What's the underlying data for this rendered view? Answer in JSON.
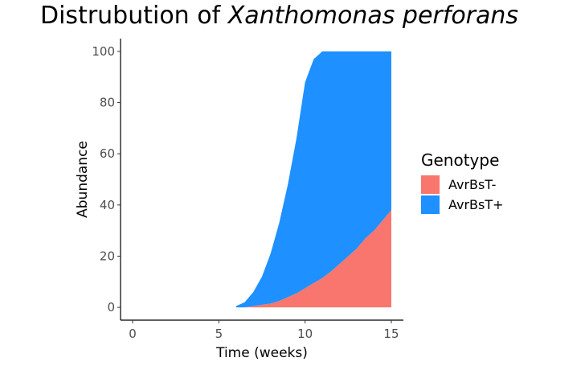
{
  "chart_data": {
    "type": "area",
    "stacked": true,
    "title": "Distrubution of",
    "title_italic": "Xanthomonas perforans",
    "xlabel": "Time (weeks)",
    "ylabel": "Abundance",
    "xlim": [
      -0.7,
      15.7
    ],
    "ylim": [
      -5,
      105
    ],
    "xticks": [
      0,
      5,
      10,
      15
    ],
    "yticks": [
      0,
      20,
      40,
      60,
      80,
      100
    ],
    "grid": false,
    "legend_title": "Genotype",
    "legend_position": "right",
    "x": [
      6,
      6.5,
      7,
      7.5,
      8,
      8.5,
      9,
      9.5,
      10,
      10.5,
      11,
      11.5,
      12,
      12.5,
      13,
      13.5,
      14,
      14.5,
      15
    ],
    "series": [
      {
        "name": "AvrBsT-",
        "color": "#F8766D",
        "values": [
          0,
          0,
          0.5,
          1,
          1.5,
          2.5,
          4,
          5.5,
          7.5,
          9.5,
          11.5,
          14,
          17,
          20,
          23,
          27,
          30,
          34,
          38
        ]
      },
      {
        "name": "AvrBsT+",
        "color": "#1E90FF",
        "values": [
          0.5,
          2,
          5.5,
          11,
          19.5,
          30.5,
          44,
          60.5,
          80.5,
          87.5,
          88.5,
          86,
          83,
          80,
          77,
          73,
          70,
          66,
          62
        ]
      }
    ]
  }
}
